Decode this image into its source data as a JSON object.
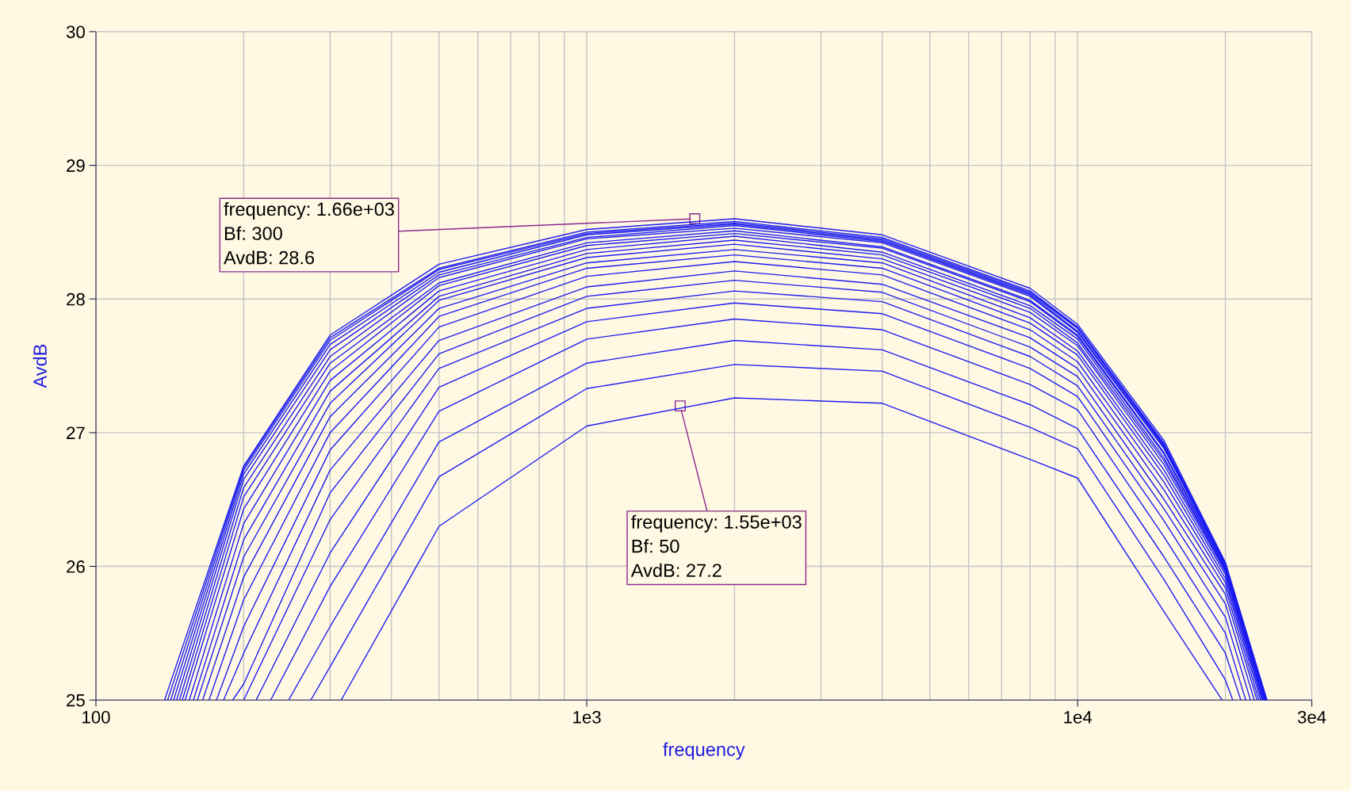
{
  "chart_data": {
    "type": "line",
    "xlabel": "frequency",
    "ylabel": "AvdB",
    "log": "x",
    "grid": true,
    "legend": false,
    "marker": "none",
    "line_style": "solid",
    "xlim": [
      100,
      30000
    ],
    "xticks": [
      100,
      {
        "value": 1000,
        "label": "1e3"
      },
      {
        "value": 10000,
        "label": "1e4"
      },
      {
        "value": 30000,
        "label": "3e4"
      }
    ],
    "ylim": [
      25,
      30
    ],
    "yticks": [
      25,
      26,
      27,
      28,
      29,
      30
    ],
    "annotations": [
      {
        "text": "frequency: 1.66e+03\nBf: 300\nAvdB: 28.6",
        "x": 1660,
        "y": 28.6
      },
      {
        "text": "frequency: 1.55e+03\nBf: 50\nAvdB: 27.2",
        "x": 1550,
        "y": 27.2
      }
    ],
    "series": [
      {
        "color": "#1c1cf0",
        "x": [
          316,
          500,
          1000,
          2000,
          4000,
          8000,
          10000,
          15000,
          19700
        ],
        "values": [
          25,
          26.3,
          27.05,
          27.26,
          27.22,
          26.8,
          26.66,
          25.66,
          25
        ]
      },
      {
        "color": "#1c1cf0",
        "x": [
          274,
          300,
          500,
          1000,
          2000,
          4000,
          8000,
          10000,
          15000,
          20000,
          20700
        ],
        "values": [
          25,
          25.25,
          26.67,
          27.33,
          27.51,
          27.46,
          27.04,
          26.88,
          25.9,
          25.15,
          25
        ]
      },
      {
        "color": "#1c1cf0",
        "x": [
          247,
          300,
          500,
          1000,
          2000,
          4000,
          8000,
          10000,
          15000,
          20000,
          21500
        ],
        "values": [
          25,
          25.55,
          26.93,
          27.52,
          27.69,
          27.62,
          27.21,
          27.03,
          26.07,
          25.35,
          25
        ]
      },
      {
        "color": "#1c1cf0",
        "x": [
          227,
          300,
          500,
          1000,
          2000,
          4000,
          8000,
          10000,
          15000,
          20000,
          22000
        ],
        "values": [
          25,
          25.85,
          27.16,
          27.7,
          27.85,
          27.77,
          27.36,
          27.17,
          26.22,
          25.5,
          25
        ]
      },
      {
        "color": "#1c1cf0",
        "x": [
          212,
          300,
          500,
          1000,
          2000,
          4000,
          8000,
          10000,
          15000,
          20000,
          22500
        ],
        "values": [
          25,
          26.1,
          27.34,
          27.83,
          27.97,
          27.89,
          27.48,
          27.27,
          26.34,
          25.62,
          25
        ]
      },
      {
        "color": "#1c1cf0",
        "x": [
          200,
          300,
          500,
          1000,
          2000,
          4000,
          8000,
          10000,
          15000,
          20000,
          22900
        ],
        "values": [
          25,
          26.35,
          27.48,
          27.93,
          28.06,
          27.98,
          27.57,
          27.35,
          26.43,
          25.72,
          25
        ]
      },
      {
        "color": "#1c1cf0",
        "x": [
          190,
          200,
          300,
          500,
          1000,
          2000,
          4000,
          8000,
          10000,
          15000,
          20000,
          23200
        ],
        "values": [
          25,
          25.12,
          26.55,
          27.59,
          28.02,
          28.14,
          28.05,
          27.64,
          27.42,
          26.5,
          25.79,
          25
        ]
      },
      {
        "color": "#1c1cf0",
        "x": [
          182,
          200,
          300,
          500,
          1000,
          2000,
          4000,
          8000,
          10000,
          15000,
          20000,
          23400
        ],
        "values": [
          25,
          25.35,
          26.72,
          27.69,
          28.09,
          28.21,
          28.11,
          27.71,
          27.48,
          26.57,
          25.84,
          25
        ]
      },
      {
        "color": "#1c1cf0",
        "x": [
          176,
          200,
          300,
          500,
          1000,
          2000,
          4000,
          8000,
          10000,
          15000,
          20000,
          23600
        ],
        "values": [
          25,
          25.55,
          26.87,
          27.79,
          28.17,
          28.28,
          28.18,
          27.77,
          27.53,
          26.63,
          25.88,
          25
        ]
      },
      {
        "color": "#1c1cf0",
        "x": [
          170,
          200,
          300,
          500,
          1000,
          2000,
          4000,
          8000,
          10000,
          15000,
          20000,
          23750
        ],
        "values": [
          25,
          25.75,
          27.0,
          27.87,
          28.23,
          28.33,
          28.23,
          27.82,
          27.58,
          26.68,
          25.91,
          25
        ]
      },
      {
        "color": "#1c1cf0",
        "x": [
          165,
          200,
          300,
          500,
          1000,
          2000,
          4000,
          8000,
          10000,
          15000,
          20000,
          23850
        ],
        "values": [
          25,
          25.92,
          27.12,
          27.93,
          28.27,
          28.37,
          28.27,
          27.86,
          27.61,
          26.72,
          25.94,
          25
        ]
      },
      {
        "color": "#1c1cf0",
        "x": [
          161,
          200,
          300,
          500,
          1000,
          2000,
          4000,
          8000,
          10000,
          15000,
          20000,
          23950
        ],
        "values": [
          25,
          26.07,
          27.22,
          27.99,
          28.31,
          28.41,
          28.3,
          27.9,
          27.65,
          26.76,
          25.96,
          25
        ]
      },
      {
        "color": "#1c1cf0",
        "x": [
          158,
          200,
          300,
          500,
          1000,
          2000,
          4000,
          8000,
          10000,
          15000,
          20000,
          24000
        ],
        "values": [
          25,
          26.2,
          27.31,
          28.02,
          28.34,
          28.44,
          28.33,
          27.93,
          27.67,
          26.79,
          25.97,
          25
        ]
      },
      {
        "color": "#1c1cf0",
        "x": [
          155,
          200,
          300,
          500,
          1000,
          2000,
          4000,
          8000,
          10000,
          15000,
          20000,
          24050
        ],
        "values": [
          25,
          26.32,
          27.39,
          28.06,
          28.37,
          28.47,
          28.35,
          27.95,
          27.7,
          26.81,
          25.98,
          25
        ]
      },
      {
        "color": "#1c1cf0",
        "x": [
          152,
          200,
          300,
          500,
          1000,
          2000,
          4000,
          8000,
          10000,
          15000,
          20000,
          24100
        ],
        "values": [
          25,
          26.43,
          27.46,
          28.1,
          28.4,
          28.49,
          28.38,
          27.98,
          27.72,
          26.84,
          25.99,
          25
        ]
      },
      {
        "color": "#1c1cf0",
        "x": [
          150,
          200,
          300,
          500,
          1000,
          2000,
          4000,
          8000,
          10000,
          15000,
          20000,
          24150
        ],
        "values": [
          25,
          26.52,
          27.52,
          28.12,
          28.42,
          28.51,
          28.39,
          27.99,
          27.73,
          26.85,
          26.0,
          25
        ]
      },
      {
        "color": "#1c1cf0",
        "x": [
          148,
          200,
          300,
          500,
          1000,
          2000,
          4000,
          8000,
          10000,
          15000,
          20000,
          24200
        ],
        "values": [
          25,
          26.59,
          27.57,
          28.16,
          28.45,
          28.53,
          28.42,
          28.02,
          27.75,
          26.88,
          26.01,
          25
        ]
      },
      {
        "color": "#1c1cf0",
        "x": [
          146,
          200,
          300,
          500,
          1000,
          2000,
          4000,
          8000,
          10000,
          15000,
          20000,
          24200
        ],
        "values": [
          25,
          26.65,
          27.62,
          28.18,
          28.46,
          28.55,
          28.43,
          28.03,
          27.76,
          26.89,
          26.01,
          25
        ]
      },
      {
        "color": "#1c1cf0",
        "x": [
          144,
          200,
          300,
          500,
          1000,
          2000,
          4000,
          8000,
          10000,
          15000,
          20000,
          24250
        ],
        "values": [
          25,
          26.69,
          27.66,
          28.2,
          28.48,
          28.56,
          28.44,
          28.04,
          27.78,
          26.9,
          26.02,
          25
        ]
      },
      {
        "color": "#1c1cf0",
        "x": [
          142,
          200,
          300,
          500,
          1000,
          2000,
          4000,
          8000,
          10000,
          15000,
          20000,
          24250
        ],
        "values": [
          25,
          26.72,
          27.69,
          28.22,
          28.49,
          28.57,
          28.45,
          28.05,
          27.79,
          26.91,
          26.02,
          25
        ]
      },
      {
        "color": "#1c1cf0",
        "x": [
          140,
          200,
          300,
          500,
          1000,
          2000,
          4000,
          8000,
          10000,
          15000,
          20000,
          24300
        ],
        "values": [
          25,
          26.74,
          27.71,
          28.23,
          28.5,
          28.58,
          28.46,
          28.06,
          27.79,
          26.92,
          26.02,
          25
        ]
      },
      {
        "color": "#1c1cf0",
        "x": [
          138,
          200,
          300,
          500,
          1000,
          2000,
          4000,
          8000,
          10000,
          15000,
          20000,
          24300
        ],
        "values": [
          25,
          26.75,
          27.73,
          28.26,
          28.52,
          28.6,
          28.48,
          28.08,
          27.81,
          26.94,
          26.03,
          25
        ]
      }
    ]
  }
}
